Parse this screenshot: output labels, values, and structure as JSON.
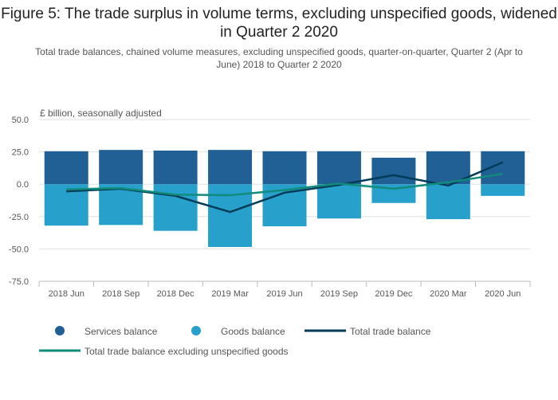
{
  "chart_data": {
    "type": "bar",
    "title": "Figure 5: The trade surplus in volume terms, excluding unspecified goods, widened in Quarter 2 2020",
    "subtitle": "Total trade balances, chained volume measures, excluding unspecified goods, quarter-on-quarter, Quarter 2 (Apr to June) 2018 to Quarter 2 2020",
    "ylabel": "£ billion, seasonally adjusted",
    "xlabel": "",
    "ylim": [
      -75,
      50
    ],
    "yticks": [
      50,
      25,
      0,
      -25,
      -50,
      -75
    ],
    "ytick_labels": [
      "50.0",
      "25.0",
      "0.0",
      "-25.0",
      "-50.0",
      "-75.0"
    ],
    "grid": true,
    "legend_position": "bottom",
    "categories": [
      "2018 Jun",
      "2018 Sep",
      "2018 Dec",
      "2019 Mar",
      "2019 Jun",
      "2019 Sep",
      "2019 Dec",
      "2020 Mar",
      "2020 Jun"
    ],
    "series": [
      {
        "name": "Services balance",
        "kind": "bar",
        "color": "#206095",
        "values": [
          25.5,
          26.5,
          26.0,
          26.5,
          25.5,
          25.5,
          20.5,
          25.5,
          25.5
        ]
      },
      {
        "name": "Goods balance",
        "kind": "bar",
        "color": "#27a0cc",
        "values": [
          -32.0,
          -31.5,
          -36.0,
          -48.5,
          -32.5,
          -26.5,
          -14.5,
          -27.0,
          -9.0
        ]
      },
      {
        "name": "Total trade balance",
        "kind": "line",
        "color": "#003c57",
        "values": [
          -5.5,
          -3.5,
          -9.0,
          -21.5,
          -6.5,
          -0.5,
          7.0,
          -1.0,
          17.0
        ]
      },
      {
        "name": "Total trade balance excluding unspecified goods",
        "kind": "line",
        "color": "#118c7b",
        "values": [
          -4.0,
          -3.0,
          -8.0,
          -8.5,
          -4.5,
          0.5,
          -3.5,
          1.5,
          8.0
        ]
      }
    ]
  }
}
